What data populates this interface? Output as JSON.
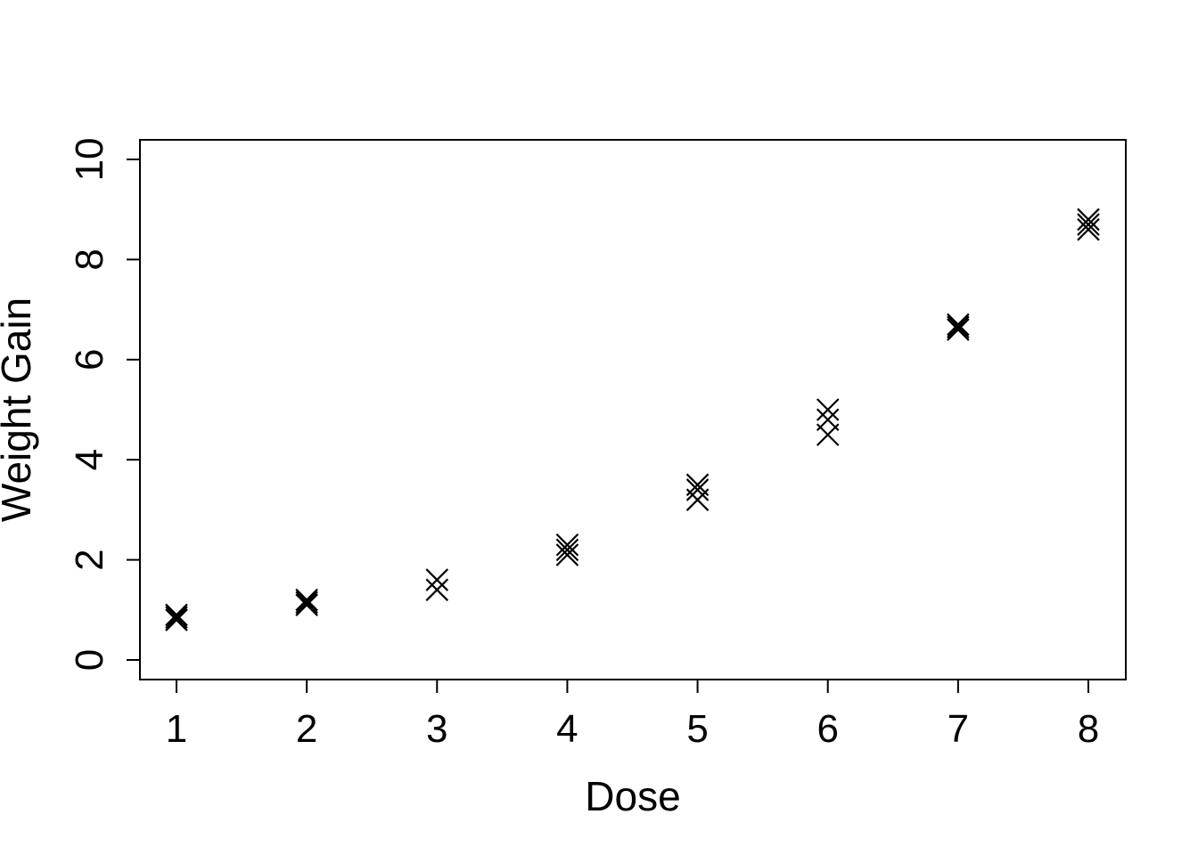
{
  "chart_data": {
    "type": "scatter",
    "title": "",
    "xlabel": "Dose",
    "ylabel": "Weight Gain",
    "xlim": [
      1,
      8
    ],
    "ylim": [
      0,
      10
    ],
    "x_ticks": [
      "1",
      "2",
      "3",
      "4",
      "5",
      "6",
      "7",
      "8"
    ],
    "y_ticks": [
      "0",
      "2",
      "4",
      "6",
      "8",
      "10"
    ],
    "grid": false,
    "marker": "x",
    "color": "#000000",
    "points": [
      {
        "x": 1,
        "y": 0.8
      },
      {
        "x": 1,
        "y": 0.85
      },
      {
        "x": 1,
        "y": 0.9
      },
      {
        "x": 2,
        "y": 1.1
      },
      {
        "x": 2,
        "y": 1.15
      },
      {
        "x": 2,
        "y": 1.2
      },
      {
        "x": 3,
        "y": 1.4
      },
      {
        "x": 3,
        "y": 1.6
      },
      {
        "x": 4,
        "y": 2.1
      },
      {
        "x": 4,
        "y": 2.2
      },
      {
        "x": 4,
        "y": 2.3
      },
      {
        "x": 5,
        "y": 3.2
      },
      {
        "x": 5,
        "y": 3.4
      },
      {
        "x": 5,
        "y": 3.5
      },
      {
        "x": 6,
        "y": 4.5
      },
      {
        "x": 6,
        "y": 4.8
      },
      {
        "x": 6,
        "y": 5.0
      },
      {
        "x": 7,
        "y": 6.6
      },
      {
        "x": 7,
        "y": 6.65
      },
      {
        "x": 7,
        "y": 6.7
      },
      {
        "x": 8,
        "y": 8.6
      },
      {
        "x": 8,
        "y": 8.7
      },
      {
        "x": 8,
        "y": 8.8
      }
    ]
  }
}
